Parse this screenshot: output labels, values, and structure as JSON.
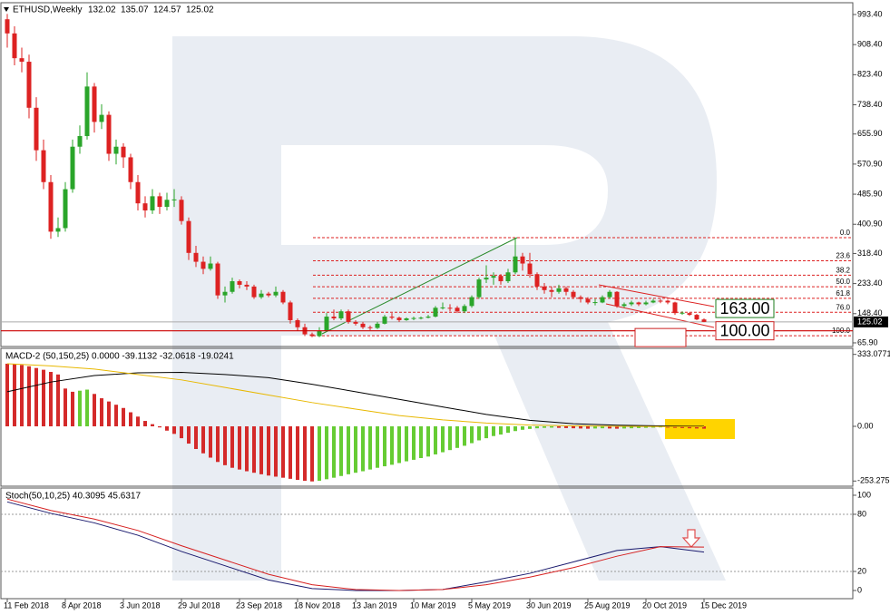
{
  "chart_data": [
    {
      "type": "candlestick",
      "title": "ETHUSD,Weekly",
      "categories": [
        "11 Feb 2018",
        null,
        null,
        null,
        null,
        null,
        null,
        null,
        "8 Apr 2018",
        null,
        null,
        null,
        null,
        null,
        null,
        null,
        "3 Jun 2018",
        null,
        null,
        null,
        null,
        null,
        null,
        null,
        "29 Jul 2018",
        null,
        null,
        null,
        null,
        null,
        null,
        null,
        "23 Sep 2018",
        null,
        null,
        null,
        null,
        null,
        null,
        null,
        "18 Nov 2018",
        null,
        null,
        null,
        null,
        null,
        null,
        null,
        "13 Jan 2019",
        null,
        null,
        null,
        null,
        null,
        null,
        null,
        "10 Mar 2019",
        null,
        null,
        null,
        null,
        null,
        null,
        null,
        "5 May 2019",
        null,
        null,
        null,
        null,
        null,
        null,
        null,
        "30 Jun 2019",
        null,
        null,
        null,
        null,
        null,
        null,
        null,
        "25 Aug 2019",
        null,
        null,
        null,
        null,
        null,
        null,
        null,
        "20 Oct 2019",
        null,
        null,
        null,
        null,
        null,
        null,
        null,
        "15 Dec 2019"
      ],
      "ohlc": [
        [
          980,
          995,
          900,
          940
        ],
        [
          940,
          960,
          850,
          870
        ],
        [
          870,
          900,
          830,
          860
        ],
        [
          860,
          880,
          700,
          730
        ],
        [
          730,
          760,
          580,
          610
        ],
        [
          610,
          640,
          500,
          520
        ],
        [
          520,
          540,
          360,
          380
        ],
        [
          380,
          420,
          365,
          390
        ],
        [
          390,
          520,
          380,
          500
        ],
        [
          500,
          640,
          490,
          620
        ],
        [
          620,
          680,
          600,
          650
        ],
        [
          650,
          830,
          640,
          790
        ],
        [
          790,
          800,
          660,
          690
        ],
        [
          690,
          740,
          670,
          710
        ],
        [
          710,
          720,
          580,
          600
        ],
        [
          600,
          640,
          570,
          620
        ],
        [
          620,
          630,
          560,
          590
        ],
        [
          590,
          600,
          500,
          520
        ],
        [
          520,
          540,
          440,
          460
        ],
        [
          460,
          480,
          420,
          440
        ],
        [
          440,
          500,
          430,
          480
        ],
        [
          480,
          490,
          430,
          450
        ],
        [
          450,
          490,
          440,
          470
        ],
        [
          470,
          500,
          450,
          471
        ],
        [
          470,
          480,
          400,
          410
        ],
        [
          410,
          420,
          300,
          320
        ],
        [
          320,
          340,
          280,
          295
        ],
        [
          295,
          310,
          260,
          275
        ],
        [
          275,
          310,
          270,
          290
        ],
        [
          290,
          295,
          190,
          200
        ],
        [
          200,
          225,
          180,
          210
        ],
        [
          210,
          250,
          205,
          240
        ],
        [
          240,
          245,
          220,
          230
        ],
        [
          230,
          240,
          215,
          225
        ],
        [
          225,
          230,
          190,
          195
        ],
        [
          195,
          215,
          190,
          205
        ],
        [
          205,
          210,
          195,
          200
        ],
        [
          200,
          225,
          195,
          210
        ],
        [
          210,
          215,
          175,
          180
        ],
        [
          180,
          185,
          120,
          130
        ],
        [
          130,
          135,
          100,
          110
        ],
        [
          110,
          120,
          85,
          90
        ],
        [
          90,
          95,
          82,
          85
        ],
        [
          85,
          110,
          82,
          100
        ],
        [
          100,
          150,
          98,
          140
        ],
        [
          140,
          160,
          130,
          135
        ],
        [
          135,
          160,
          130,
          155
        ],
        [
          155,
          160,
          120,
          125
        ],
        [
          125,
          130,
          115,
          120
        ],
        [
          120,
          125,
          105,
          110
        ],
        [
          110,
          115,
          102,
          108
        ],
        [
          108,
          125,
          105,
          120
        ],
        [
          120,
          145,
          118,
          140
        ],
        [
          140,
          150,
          132,
          137
        ],
        [
          137,
          140,
          125,
          130
        ],
        [
          130,
          138,
          128,
          135
        ],
        [
          135,
          140,
          130,
          136
        ],
        [
          135,
          140,
          132,
          137
        ],
        [
          137,
          145,
          135,
          140
        ],
        [
          140,
          170,
          138,
          165
        ],
        [
          165,
          180,
          160,
          166
        ],
        [
          165,
          175,
          155,
          164
        ],
        [
          165,
          170,
          150,
          155
        ],
        [
          155,
          175,
          150,
          170
        ],
        [
          170,
          200,
          165,
          195
        ],
        [
          195,
          250,
          190,
          245
        ],
        [
          245,
          285,
          235,
          250
        ],
        [
          250,
          265,
          230,
          255
        ],
        [
          255,
          260,
          230,
          240
        ],
        [
          240,
          275,
          235,
          265
        ],
        [
          265,
          363,
          260,
          310
        ],
        [
          310,
          320,
          270,
          290
        ],
        [
          290,
          320,
          250,
          260
        ],
        [
          260,
          265,
          215,
          225
        ],
        [
          225,
          235,
          205,
          215
        ],
        [
          215,
          225,
          195,
          210
        ],
        [
          210,
          230,
          205,
          220
        ],
        [
          220,
          225,
          200,
          210
        ],
        [
          210,
          215,
          190,
          195
        ],
        [
          195,
          200,
          180,
          190
        ],
        [
          190,
          195,
          175,
          180
        ],
        [
          180,
          190,
          172,
          181
        ],
        [
          180,
          200,
          178,
          195
        ],
        [
          195,
          215,
          190,
          210
        ],
        [
          210,
          212,
          165,
          170
        ],
        [
          170,
          180,
          165,
          175
        ],
        [
          175,
          185,
          170,
          180
        ],
        [
          180,
          182,
          170,
          175
        ],
        [
          175,
          185,
          172,
          180
        ],
        [
          180,
          190,
          178,
          185
        ],
        [
          185,
          190,
          178,
          184
        ],
        [
          185,
          188,
          175,
          180
        ],
        [
          180,
          182,
          145,
          150
        ],
        [
          150,
          155,
          145,
          151
        ],
        [
          150,
          152,
          142,
          145
        ],
        [
          145,
          148,
          130,
          132.02
        ],
        [
          132.02,
          135.07,
          124.57,
          125.02
        ]
      ],
      "up_color": "#2aa52a",
      "down_color": "#dd2222",
      "ylim": [
        55.6,
        1026.7
      ],
      "yticks": [
        {
          "value": 993.4,
          "label": "993.40"
        },
        {
          "value": 908.4,
          "label": "908.40"
        },
        {
          "value": 823.4,
          "label": "823.40"
        },
        {
          "value": 738.4,
          "label": "738.40"
        },
        {
          "value": 655.9,
          "label": "655.90"
        },
        {
          "value": 570.9,
          "label": "570.90"
        },
        {
          "value": 485.9,
          "label": "485.90"
        },
        {
          "value": 400.9,
          "label": "400.90"
        },
        {
          "value": 318.4,
          "label": "318.40"
        },
        {
          "value": 233.4,
          "label": "233.40"
        },
        {
          "value": 148.4,
          "label": "148.40"
        },
        {
          "value": 65.9,
          "label": "65.90"
        }
      ],
      "fibonacci": {
        "high": 363,
        "low": 86,
        "color": "#dd2222",
        "levels": [
          {
            "value": 0,
            "label": "0.0"
          },
          23.6,
          38.2,
          {
            "value": 50,
            "label": "50.0"
          },
          61.8,
          {
            "value": 76,
            "label": "76.0"
          },
          {
            "value": 100,
            "label": "100.0"
          }
        ]
      },
      "price_labels": [
        {
          "value": 163,
          "label": "163.00",
          "color": "#1e7d1e"
        },
        {
          "value": 100,
          "label": "100.00",
          "color": "#cc2222"
        },
        {
          "value": 80.86,
          "color": "#cc2222"
        }
      ]
    },
    {
      "type": "macd",
      "title": "MACD-2 (50,150,25) 0.0000 -39.1132 -32.0618 -19.0241",
      "histogram": [
        290,
        288,
        284,
        278,
        270,
        262,
        252,
        240,
        175,
        160,
        165,
        170,
        150,
        130,
        115,
        100,
        85,
        65,
        45,
        25,
        10,
        -5,
        -20,
        -35,
        -55,
        -80,
        -105,
        -125,
        -145,
        -165,
        -180,
        -192,
        -200,
        -208,
        -215,
        -222,
        -228,
        -233,
        -238,
        -243,
        -248,
        -252,
        -255,
        -252,
        -245,
        -238,
        -230,
        -222,
        -215,
        -208,
        -200,
        -192,
        -185,
        -178,
        -170,
        -162,
        -155,
        -147,
        -140,
        -130,
        -120,
        -110,
        -100,
        -90,
        -78,
        -65,
        -55,
        -45,
        -38,
        -30,
        -22,
        -16,
        -12,
        -9,
        -7,
        -6,
        -7,
        -8,
        -9,
        -10,
        -11,
        -10,
        -9,
        -10,
        -11,
        -10,
        -9,
        -8,
        -7,
        -6,
        -5,
        -6,
        -7,
        -8,
        -9,
        -10,
        -11
      ],
      "up_color": "#66cc33",
      "down_color": "#d42a2a",
      "series": [
        {
          "color": "#000000",
          "x": [
            0,
            6,
            12,
            18,
            24,
            30,
            36,
            42,
            48,
            54,
            60,
            66,
            72,
            78,
            84,
            90,
            96
          ],
          "values": [
            160,
            205,
            235,
            248,
            250,
            240,
            225,
            195,
            160,
            125,
            90,
            55,
            28,
            12,
            5,
            2,
            0
          ]
        },
        {
          "color": "#e8b800",
          "x": [
            0,
            6,
            12,
            18,
            24,
            30,
            36,
            42,
            48,
            54,
            60,
            66,
            72,
            78,
            84,
            90,
            96
          ],
          "values": [
            290,
            280,
            265,
            240,
            215,
            180,
            145,
            110,
            80,
            50,
            30,
            15,
            6,
            2,
            0,
            -1,
            -2
          ]
        }
      ],
      "ylim": [
        -277.2,
        361.2
      ],
      "yticks": [
        333.0771,
        {
          "value": 0,
          "label": "0.00"
        },
        -253.275
      ]
    },
    {
      "type": "stochastic",
      "title": "Stoch(50,10,25) 40.3095 45.6317",
      "series": [
        {
          "color": "#1a1a6e",
          "x": [
            0,
            6,
            12,
            18,
            24,
            30,
            36,
            42,
            48,
            54,
            60,
            66,
            72,
            78,
            84,
            90,
            96
          ],
          "values": [
            93,
            81,
            71,
            58,
            41,
            26,
            11,
            2,
            0,
            0,
            1,
            9,
            18,
            30,
            42,
            46,
            40.31
          ]
        },
        {
          "color": "#d62020",
          "x": [
            0,
            6,
            12,
            18,
            24,
            30,
            36,
            42,
            48,
            54,
            60,
            66,
            72,
            78,
            84,
            90,
            96
          ],
          "values": [
            96,
            84,
            75,
            63,
            47,
            32,
            17,
            6,
            1,
            0,
            1,
            6,
            14,
            24,
            36,
            46,
            45.63
          ]
        }
      ],
      "ylim": [
        -8.6,
        107.6
      ],
      "yticks": [
        100,
        80,
        20,
        0
      ],
      "grid": "dotted"
    }
  ]
}
